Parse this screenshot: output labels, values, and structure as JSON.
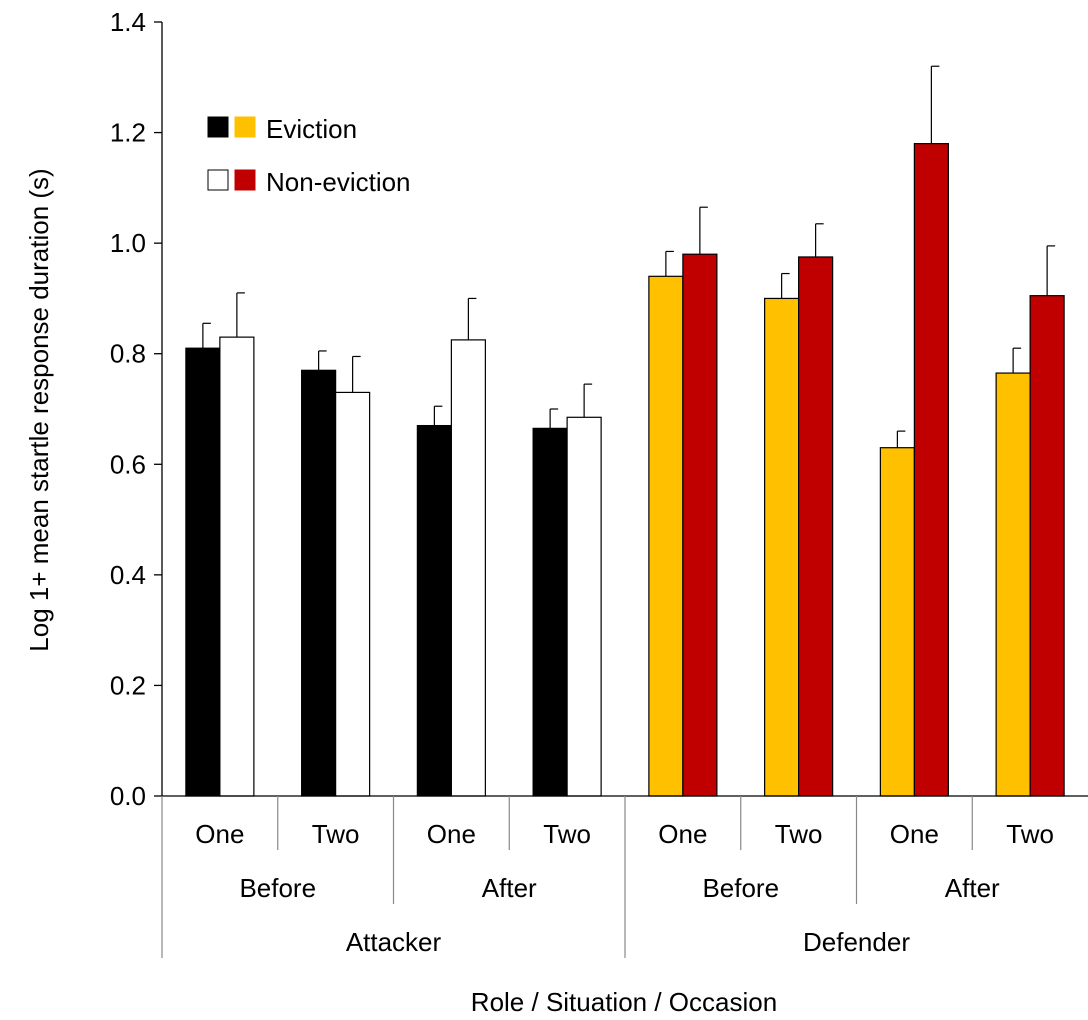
{
  "chart_data": {
    "type": "bar",
    "title": "",
    "xlabel": "Role / Situation / Occasion",
    "ylabel": "Log 1+ mean startle response duration (s)",
    "ylim": [
      0,
      1.4
    ],
    "yticks": [
      "0.0",
      "0.2",
      "0.4",
      "0.6",
      "0.8",
      "1.0",
      "1.2",
      "1.4"
    ],
    "grid": false,
    "legend": {
      "placement": "top-left",
      "entries": [
        {
          "label": "Eviction",
          "swatches": [
            "#000000",
            "#FFC000"
          ]
        },
        {
          "label": "Non-eviction",
          "swatches": [
            "#FFFFFF",
            "#C00000"
          ]
        }
      ]
    },
    "occasions": [
      "One",
      "Two",
      "One",
      "Two",
      "One",
      "Two",
      "One",
      "Two"
    ],
    "situations": [
      "Before",
      "After",
      "Before",
      "After"
    ],
    "roles": [
      "Attacker",
      "Defender"
    ],
    "series": [
      {
        "name": "Eviction",
        "values": [
          0.81,
          0.77,
          0.67,
          0.665,
          0.94,
          0.9,
          0.63,
          0.765
        ],
        "errors": [
          0.045,
          0.035,
          0.035,
          0.035,
          0.045,
          0.045,
          0.03,
          0.045
        ],
        "colors": [
          "#000000",
          "#000000",
          "#000000",
          "#000000",
          "#FFC000",
          "#FFC000",
          "#FFC000",
          "#FFC000"
        ]
      },
      {
        "name": "Non-eviction",
        "values": [
          0.83,
          0.73,
          0.825,
          0.685,
          0.98,
          0.975,
          1.18,
          0.905
        ],
        "errors": [
          0.08,
          0.065,
          0.075,
          0.06,
          0.085,
          0.06,
          0.14,
          0.09
        ],
        "colors": [
          "#FFFFFF",
          "#FFFFFF",
          "#FFFFFF",
          "#FFFFFF",
          "#C00000",
          "#C00000",
          "#C00000",
          "#C00000"
        ]
      }
    ]
  }
}
